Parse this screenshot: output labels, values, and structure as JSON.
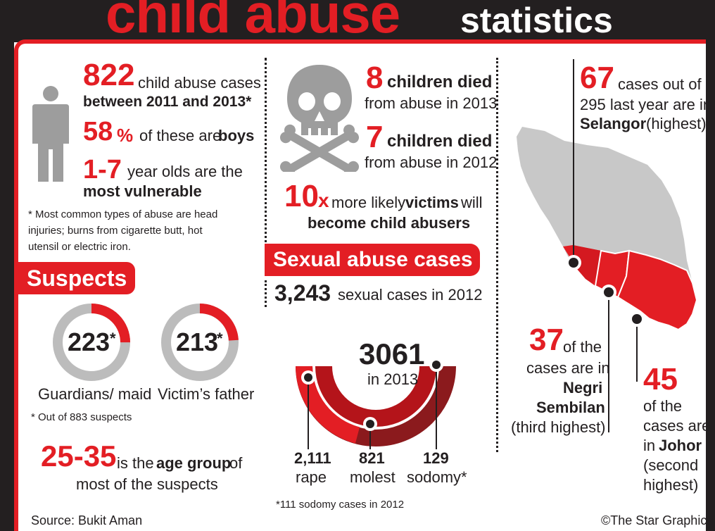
{
  "header": {
    "title_main": "child abuse",
    "title_sub": "statistics"
  },
  "overview": {
    "cases_number": "822",
    "cases_text": "child abuse cases",
    "cases_period": "between 2011 and 2013*",
    "boys_percent": "58",
    "boys_percent_sign": "%",
    "boys_text_a": "of these are",
    "boys_text_b": "boys",
    "age_range": "1-7",
    "age_text": "year olds are the",
    "age_text_b": "most vulnerable",
    "footnote_line1": "* Most common types of abuse are head",
    "footnote_line2": "injuries; burns from cigarette butt, hot",
    "footnote_line3": "utensil or electric iron."
  },
  "deaths": {
    "y2013_number": "8",
    "y2013_text": "children died",
    "y2013_sub": "from abuse in 2013",
    "y2012_number": "7",
    "y2012_text": "children died",
    "y2012_sub": "from abuse in 2012",
    "likely_number": "10",
    "likely_x": "x",
    "likely_text_a": "more likely",
    "likely_text_b": "victims",
    "likely_text_c": "will",
    "likely_text_d": "become child abusers"
  },
  "suspects": {
    "heading": "Suspects",
    "guardians_value": "223",
    "guardians_fraction": 0.25,
    "guardians_label": "Guardians/ maid",
    "father_value": "213",
    "father_fraction": 0.24,
    "father_label": "Victim’s father",
    "asterisk": "*",
    "note": "* Out of 883 suspects",
    "age_group": "25-35",
    "age_text_a": "is the",
    "age_text_b": "age group",
    "age_text_c": "of",
    "age_text_d": "most of the suspects"
  },
  "sexual": {
    "heading": "Sexual abuse cases",
    "cases_2012_number": "3,243",
    "cases_2012_text": "sexual cases in 2012",
    "total_2013": "3061",
    "total_2013_label": "in 2013",
    "rape_value": "2,111",
    "rape_label": "rape",
    "molest_value": "821",
    "molest_label": "molest",
    "sodomy_value": "129",
    "sodomy_label": "sodomy*",
    "footnote": "*111 sodomy cases in 2012"
  },
  "map": {
    "selangor_number": "67",
    "selangor_text_a": "cases out of",
    "selangor_text_b": "295 last year are in",
    "selangor_state": "Selangor",
    "selangor_rank": "(highest).",
    "negri_number": "37",
    "negri_text_a": "of the",
    "negri_text_b": "cases are in",
    "negri_state_a": "Negri",
    "negri_state_b": "Sembilan",
    "negri_rank": "(third highest)",
    "johor_number": "45",
    "johor_text_a": "of the",
    "johor_text_b": "cases are",
    "johor_text_c": "in",
    "johor_state": "Johor",
    "johor_rank_a": "(second",
    "johor_rank_b": "highest)"
  },
  "footer": {
    "source": "Source: Bukit Aman",
    "credit": "©The Star Graphics"
  },
  "colors": {
    "accent": "#e31e24",
    "dark": "#231f20",
    "grey": "#9d9d9d",
    "donut_dark": "#8b1a1d",
    "donut_mid": "#b4141a"
  }
}
